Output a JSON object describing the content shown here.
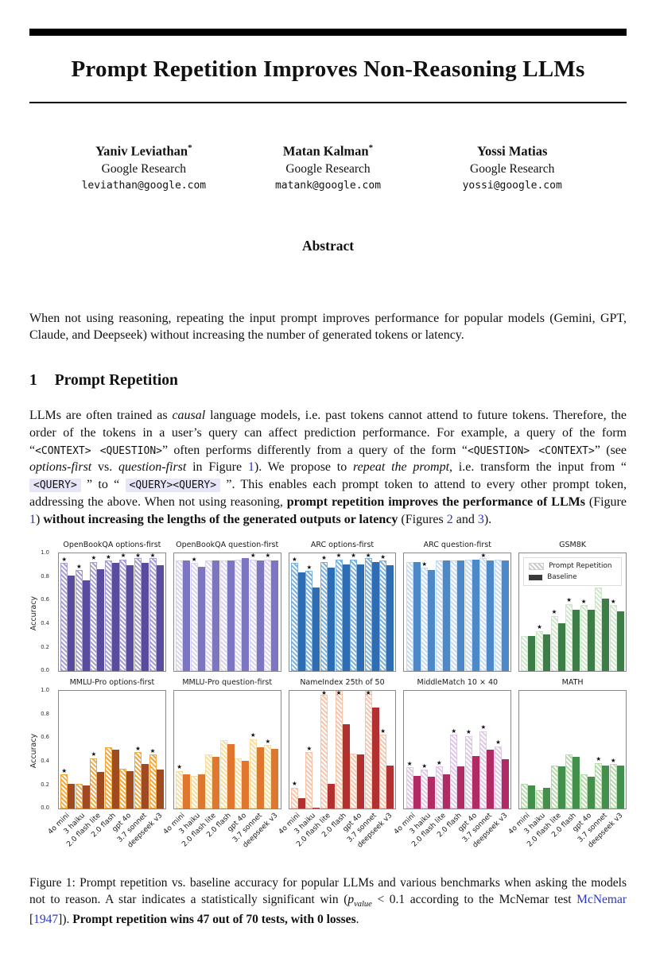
{
  "masthead": {
    "title": "Prompt Repetition Improves Non-Reasoning LLMs"
  },
  "authors": [
    {
      "name": "Yaniv Leviathan",
      "mark": "*",
      "affiliation": "Google Research",
      "email": "leviathan@google.com"
    },
    {
      "name": "Matan Kalman",
      "mark": "*",
      "affiliation": "Google Research",
      "email": "matank@google.com"
    },
    {
      "name": "Yossi Matias",
      "mark": "",
      "affiliation": "Google Research",
      "email": "yossi@google.com"
    }
  ],
  "abstract": {
    "heading": "Abstract",
    "text": "When not using reasoning, repeating the input prompt improves performance for popular models (Gemini, GPT, Claude, and Deepseek) without increasing the number of generated tokens or latency."
  },
  "section": {
    "number": "1",
    "title": "Prompt Repetition",
    "paragraph": [
      {
        "t": "LLMs are often trained as ",
        "s": "plain"
      },
      {
        "t": "causal",
        "s": "italic"
      },
      {
        "t": " language models, i.e. past tokens cannot attend to future tokens. Therefore, the order of the tokens in a user’s query can affect prediction performance. For example, a query of the form “",
        "s": "plain"
      },
      {
        "t": "<CONTEXT> <QUESTION>",
        "s": "code"
      },
      {
        "t": "” often performs differently from a query of the form “",
        "s": "plain"
      },
      {
        "t": "<QUESTION> <CONTEXT>",
        "s": "code"
      },
      {
        "t": "” (see ",
        "s": "plain"
      },
      {
        "t": "options-first",
        "s": "italic"
      },
      {
        "t": " vs. ",
        "s": "plain"
      },
      {
        "t": "question-first",
        "s": "italic"
      },
      {
        "t": " in Figure ",
        "s": "plain"
      },
      {
        "t": "1",
        "s": "link"
      },
      {
        "t": "). We propose to ",
        "s": "plain"
      },
      {
        "t": "repeat the prompt",
        "s": "italic"
      },
      {
        "t": ", i.e. transform the input from “ ",
        "s": "plain"
      },
      {
        "t": "<QUERY>",
        "s": "codehl"
      },
      {
        "t": " ” to “ ",
        "s": "plain"
      },
      {
        "t": "<QUERY><QUERY>",
        "s": "codehl"
      },
      {
        "t": " ”. This enables each prompt token to attend to every other prompt token, addressing the above. When not using reasoning, ",
        "s": "plain"
      },
      {
        "t": "prompt repetition improves the performance of LLMs",
        "s": "bold"
      },
      {
        "t": " (Figure ",
        "s": "plain"
      },
      {
        "t": "1",
        "s": "link"
      },
      {
        "t": ") ",
        "s": "plain"
      },
      {
        "t": "without increasing the lengths of the generated outputs or latency",
        "s": "bold"
      },
      {
        "t": " (Figures ",
        "s": "plain"
      },
      {
        "t": "2",
        "s": "link"
      },
      {
        "t": " and ",
        "s": "plain"
      },
      {
        "t": "3",
        "s": "link"
      },
      {
        "t": ").",
        "s": "plain"
      }
    ]
  },
  "figure": {
    "ylabel": "Accuracy",
    "yticks": [
      "1.0",
      "0.8",
      "0.6",
      "0.4",
      "0.2",
      "0.0"
    ],
    "legend": {
      "repetition": "Prompt Repetition",
      "baseline": "Baseline"
    },
    "models": [
      "4o mini",
      "3 haiku",
      "2.0 flash lite",
      "2.0 flash",
      "gpt 4o",
      "3.7 sonnet",
      "deepseek v3"
    ],
    "caption": [
      {
        "t": "Figure 1: Prompt repetition vs. baseline accuracy for popular LLMs and various benchmarks when asking the models not to reason. A star indicates a statistically significant win (",
        "s": "plain"
      },
      {
        "t": "p",
        "s": "mathit"
      },
      {
        "t": "value",
        "s": "mathsub"
      },
      {
        "t": " < 0.1 according to the McNemar test ",
        "s": "plain"
      },
      {
        "t": "McNemar",
        "s": "link"
      },
      {
        "t": " [",
        "s": "plain"
      },
      {
        "t": "1947",
        "s": "link"
      },
      {
        "t": "]). ",
        "s": "plain"
      },
      {
        "t": "Prompt repetition wins 47 out of 70 tests, with 0 losses",
        "s": "bold"
      },
      {
        "t": ".",
        "s": "plain"
      }
    ]
  },
  "chart_data": [
    {
      "type": "bar",
      "title": "OpenBookQA options-first",
      "categories": [
        "4o mini",
        "3 haiku",
        "2.0 flash lite",
        "2.0 flash",
        "gpt 4o",
        "3.7 sonnet",
        "deepseek v3"
      ],
      "series": [
        {
          "name": "Prompt Repetition",
          "values": [
            0.92,
            0.86,
            0.93,
            0.94,
            0.95,
            0.96,
            0.96
          ]
        },
        {
          "name": "Baseline",
          "values": [
            0.81,
            0.77,
            0.87,
            0.92,
            0.9,
            0.92,
            0.9
          ]
        }
      ],
      "significant_wins": [
        true,
        true,
        true,
        true,
        true,
        true,
        true
      ],
      "colors": {
        "repetition": "#a79ed2",
        "baseline": "#5b4b9e"
      },
      "ylabel": "Accuracy",
      "ylim": [
        0,
        1
      ],
      "legend": false
    },
    {
      "type": "bar",
      "title": "OpenBookQA question-first",
      "categories": [
        "4o mini",
        "3 haiku",
        "2.0 flash lite",
        "2.0 flash",
        "gpt 4o",
        "3.7 sonnet",
        "deepseek v3"
      ],
      "series": [
        {
          "name": "Prompt Repetition",
          "values": [
            0.94,
            0.92,
            0.94,
            0.94,
            0.95,
            0.95,
            0.95
          ]
        },
        {
          "name": "Baseline",
          "values": [
            0.94,
            0.89,
            0.94,
            0.94,
            0.96,
            0.94,
            0.94
          ]
        }
      ],
      "significant_wins": [
        false,
        true,
        false,
        false,
        false,
        true,
        true
      ],
      "colors": {
        "repetition": "#d7d4ec",
        "baseline": "#7c76c2"
      },
      "ylabel": "Accuracy",
      "ylim": [
        0,
        1
      ],
      "legend": false
    },
    {
      "type": "bar",
      "title": "ARC options-first",
      "categories": [
        "4o mini",
        "3 haiku",
        "2.0 flash lite",
        "2.0 flash",
        "gpt 4o",
        "3.7 sonnet",
        "deepseek v3"
      ],
      "series": [
        {
          "name": "Prompt Repetition",
          "values": [
            0.92,
            0.85,
            0.93,
            0.95,
            0.95,
            0.96,
            0.94
          ]
        },
        {
          "name": "Baseline",
          "values": [
            0.84,
            0.71,
            0.88,
            0.91,
            0.91,
            0.93,
            0.9
          ]
        }
      ],
      "significant_wins": [
        true,
        true,
        true,
        true,
        true,
        true,
        true
      ],
      "colors": {
        "repetition": "#7db1dd",
        "baseline": "#2e6db4"
      },
      "ylabel": "Accuracy",
      "ylim": [
        0,
        1
      ],
      "legend": false
    },
    {
      "type": "bar",
      "title": "ARC question-first",
      "categories": [
        "4o mini",
        "3 haiku",
        "2.0 flash lite",
        "2.0 flash",
        "gpt 4o",
        "3.7 sonnet",
        "deepseek v3"
      ],
      "series": [
        {
          "name": "Prompt Repetition",
          "values": [
            0.93,
            0.88,
            0.94,
            0.94,
            0.95,
            0.96,
            0.95
          ]
        },
        {
          "name": "Baseline",
          "values": [
            0.93,
            0.86,
            0.94,
            0.94,
            0.95,
            0.94,
            0.94
          ]
        }
      ],
      "significant_wins": [
        false,
        true,
        false,
        false,
        false,
        true,
        false
      ],
      "colors": {
        "repetition": "#c7dbf0",
        "baseline": "#4d88c8"
      },
      "ylabel": "Accuracy",
      "ylim": [
        0,
        1
      ],
      "legend": false
    },
    {
      "type": "bar",
      "title": "GSM8K",
      "categories": [
        "4o mini",
        "3 haiku",
        "2.0 flash lite",
        "2.0 flash",
        "gpt 4o",
        "3.7 sonnet",
        "deepseek v3"
      ],
      "series": [
        {
          "name": "Prompt Repetition",
          "values": [
            0.3,
            0.34,
            0.47,
            0.57,
            0.56,
            0.71,
            0.56
          ]
        },
        {
          "name": "Baseline",
          "values": [
            0.3,
            0.31,
            0.41,
            0.52,
            0.52,
            0.62,
            0.51
          ]
        }
      ],
      "significant_wins": [
        false,
        true,
        true,
        true,
        true,
        true,
        true
      ],
      "colors": {
        "repetition": "#cfe6ca",
        "baseline": "#3d7d47"
      },
      "ylabel": "Accuracy",
      "ylim": [
        0,
        1
      ],
      "legend": true
    },
    {
      "type": "bar",
      "title": "MMLU-Pro options-first",
      "categories": [
        "4o mini",
        "3 haiku",
        "2.0 flash lite",
        "2.0 flash",
        "gpt 4o",
        "3.7 sonnet",
        "deepseek v3"
      ],
      "series": [
        {
          "name": "Prompt Repetition",
          "values": [
            0.29,
            0.21,
            0.43,
            0.52,
            0.34,
            0.48,
            0.46
          ]
        },
        {
          "name": "Baseline",
          "values": [
            0.21,
            0.2,
            0.31,
            0.5,
            0.32,
            0.38,
            0.33
          ]
        }
      ],
      "significant_wins": [
        true,
        false,
        true,
        false,
        false,
        true,
        true
      ],
      "colors": {
        "repetition": "#f1a843",
        "baseline": "#a04a22"
      },
      "ylabel": "Accuracy",
      "ylim": [
        0,
        1
      ],
      "legend": false
    },
    {
      "type": "bar",
      "title": "MMLU-Pro question-first",
      "categories": [
        "4o mini",
        "3 haiku",
        "2.0 flash lite",
        "2.0 flash",
        "gpt 4o",
        "3.7 sonnet",
        "deepseek v3"
      ],
      "series": [
        {
          "name": "Prompt Repetition",
          "values": [
            0.32,
            0.28,
            0.46,
            0.58,
            0.43,
            0.59,
            0.54
          ]
        },
        {
          "name": "Baseline",
          "values": [
            0.29,
            0.29,
            0.44,
            0.55,
            0.41,
            0.52,
            0.51
          ]
        }
      ],
      "significant_wins": [
        true,
        false,
        false,
        false,
        false,
        true,
        true
      ],
      "colors": {
        "repetition": "#f7dd9f",
        "baseline": "#e1762f"
      },
      "ylabel": "Accuracy",
      "ylim": [
        0,
        1
      ],
      "legend": false
    },
    {
      "type": "bar",
      "title": "NameIndex 25th of 50",
      "categories": [
        "4o mini",
        "3 haiku",
        "2.0 flash lite",
        "2.0 flash",
        "gpt 4o",
        "3.7 sonnet",
        "deepseek v3"
      ],
      "series": [
        {
          "name": "Prompt Repetition",
          "values": [
            0.18,
            0.48,
            0.97,
            1.0,
            0.47,
            1.0,
            0.63
          ]
        },
        {
          "name": "Baseline",
          "values": [
            0.09,
            0.01,
            0.21,
            0.72,
            0.46,
            0.86,
            0.37
          ]
        }
      ],
      "significant_wins": [
        true,
        true,
        true,
        true,
        false,
        true,
        true
      ],
      "colors": {
        "repetition": "#f7c5ab",
        "baseline": "#b23030"
      },
      "ylabel": "Accuracy",
      "ylim": [
        0,
        1
      ],
      "legend": false
    },
    {
      "type": "bar",
      "title": "MiddleMatch 10 × 40",
      "categories": [
        "4o mini",
        "3 haiku",
        "2.0 flash lite",
        "2.0 flash",
        "gpt 4o",
        "3.7 sonnet",
        "deepseek v3"
      ],
      "series": [
        {
          "name": "Prompt Repetition",
          "values": [
            0.35,
            0.33,
            0.36,
            0.63,
            0.62,
            0.66,
            0.53
          ]
        },
        {
          "name": "Baseline",
          "values": [
            0.28,
            0.27,
            0.29,
            0.36,
            0.45,
            0.5,
            0.42
          ]
        }
      ],
      "significant_wins": [
        true,
        true,
        true,
        true,
        true,
        true,
        true
      ],
      "colors": {
        "repetition": "#dec8e5",
        "baseline": "#b12a64"
      },
      "ylabel": "Accuracy",
      "ylim": [
        0,
        1
      ],
      "legend": false
    },
    {
      "type": "bar",
      "title": "MATH",
      "categories": [
        "4o mini",
        "3 haiku",
        "2.0 flash lite",
        "2.0 flash",
        "gpt 4o",
        "3.7 sonnet",
        "deepseek v3"
      ],
      "series": [
        {
          "name": "Prompt Repetition",
          "values": [
            0.21,
            0.16,
            0.37,
            0.46,
            0.29,
            0.39,
            0.38
          ]
        },
        {
          "name": "Baseline",
          "values": [
            0.2,
            0.18,
            0.36,
            0.44,
            0.27,
            0.37,
            0.37
          ]
        }
      ],
      "significant_wins": [
        false,
        false,
        false,
        false,
        false,
        true,
        true
      ],
      "colors": {
        "repetition": "#b7daab",
        "baseline": "#42904c"
      },
      "ylabel": "Accuracy",
      "ylim": [
        0,
        1
      ],
      "legend": false
    }
  ]
}
